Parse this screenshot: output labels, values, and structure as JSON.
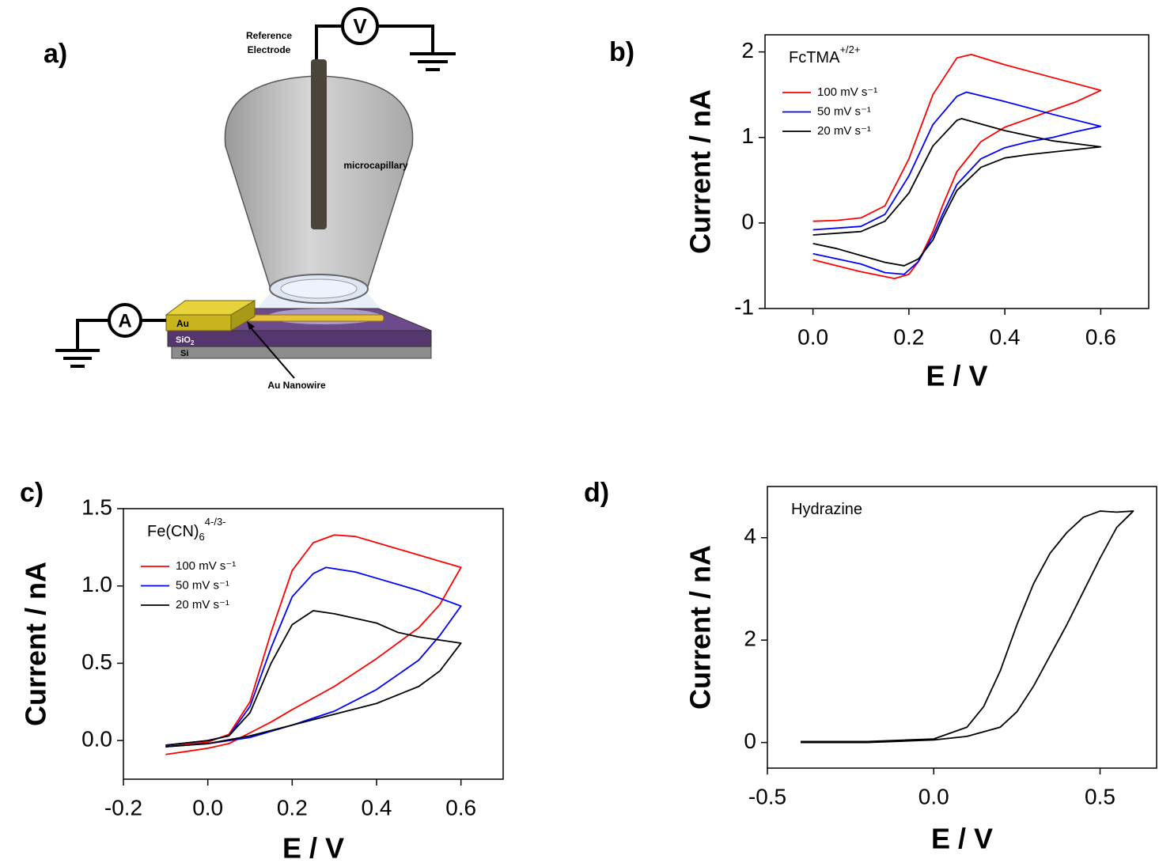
{
  "diagram": {
    "panel_label": "a)",
    "reference_electrode": [
      "Reference",
      "Electrode"
    ],
    "microcapillary": "microcapillary",
    "gold": "Au",
    "oxide": {
      "text": "SiO",
      "sub": "2"
    },
    "silicon": "Si",
    "nanowire": "Au Nanowire",
    "voltmeter": "V",
    "ammeter": "A"
  },
  "chart_data": [
    {
      "type": "line",
      "panel_label": "b)",
      "annotation": {
        "text": "FcTMA",
        "sup": "+/2+"
      },
      "xlabel": "E / V",
      "ylabel": "Current / nA",
      "xlim": [
        -0.1,
        0.7
      ],
      "xticks": [
        {
          "value": 0,
          "label": "0.0"
        },
        0.2,
        0.4,
        0.6
      ],
      "ylim": [
        -1,
        2.2
      ],
      "yticks": [
        -1,
        0,
        1,
        2
      ],
      "legend": "upper left",
      "series": [
        {
          "name": "100 mV s⁻¹",
          "color": "#ff0000",
          "x": [
            0,
            0.05,
            0.1,
            0.15,
            0.2,
            0.25,
            0.3,
            0.33,
            0.4,
            0.5,
            0.6,
            0.55,
            0.5,
            0.45,
            0.4,
            0.35,
            0.3,
            0.27,
            0.25,
            0.22,
            0.2,
            0.17,
            0.1,
            0.05,
            0
          ],
          "values": [
            0.02,
            0.03,
            0.06,
            0.2,
            0.75,
            1.5,
            1.93,
            1.97,
            1.85,
            1.7,
            1.55,
            1.42,
            1.32,
            1.22,
            1.12,
            0.95,
            0.6,
            0.2,
            -0.1,
            -0.45,
            -0.6,
            -0.65,
            -0.57,
            -0.5,
            -0.43
          ]
        },
        {
          "name": "50 mV s⁻¹",
          "color": "#0000ff",
          "x": [
            0,
            0.1,
            0.15,
            0.2,
            0.25,
            0.3,
            0.32,
            0.4,
            0.5,
            0.6,
            0.55,
            0.5,
            0.45,
            0.4,
            0.35,
            0.3,
            0.27,
            0.25,
            0.22,
            0.19,
            0.15,
            0.1,
            0.05,
            0
          ],
          "values": [
            -0.08,
            -0.04,
            0.1,
            0.55,
            1.15,
            1.48,
            1.53,
            1.42,
            1.27,
            1.13,
            1.07,
            1.0,
            0.95,
            0.88,
            0.75,
            0.45,
            0.1,
            -0.15,
            -0.45,
            -0.6,
            -0.58,
            -0.48,
            -0.42,
            -0.36
          ]
        },
        {
          "name": "20 mV s⁻¹",
          "color": "#000000",
          "x": [
            0,
            0.1,
            0.15,
            0.2,
            0.25,
            0.3,
            0.31,
            0.4,
            0.5,
            0.6,
            0.55,
            0.5,
            0.45,
            0.4,
            0.35,
            0.3,
            0.27,
            0.25,
            0.22,
            0.19,
            0.15,
            0.1,
            0.05,
            0
          ],
          "values": [
            -0.14,
            -0.1,
            0.02,
            0.35,
            0.9,
            1.2,
            1.22,
            1.08,
            0.96,
            0.89,
            0.86,
            0.83,
            0.8,
            0.76,
            0.65,
            0.38,
            0.05,
            -0.2,
            -0.42,
            -0.5,
            -0.46,
            -0.38,
            -0.3,
            -0.24
          ]
        }
      ]
    },
    {
      "type": "line",
      "panel_label": "c)",
      "annotation": {
        "text": "Fe(CN)",
        "sub": "6",
        "sup": "4-/3-"
      },
      "xlabel": "E / V",
      "ylabel": "Current / nA",
      "xlim": [
        -0.2,
        0.7
      ],
      "xticks": [
        -0.2,
        {
          "value": 0,
          "label": "0.0"
        },
        0.2,
        0.4,
        0.6
      ],
      "ylim": [
        -0.25,
        1.5
      ],
      "yticks": [
        {
          "value": 0,
          "label": "0.0"
        },
        0.5,
        {
          "value": 1,
          "label": "1.0"
        },
        1.5
      ],
      "legend": "upper left",
      "series": [
        {
          "name": "100 mV s⁻¹",
          "color": "#ff0000",
          "x": [
            -0.1,
            0,
            0.05,
            0.1,
            0.15,
            0.2,
            0.25,
            0.3,
            0.35,
            0.4,
            0.5,
            0.55,
            0.6,
            0.55,
            0.5,
            0.4,
            0.3,
            0.2,
            0.15,
            0.1,
            0.05,
            0,
            -0.1
          ],
          "values": [
            -0.04,
            -0.01,
            0.04,
            0.25,
            0.7,
            1.1,
            1.28,
            1.33,
            1.32,
            1.28,
            1.2,
            1.16,
            1.12,
            0.88,
            0.73,
            0.53,
            0.35,
            0.2,
            0.12,
            0.05,
            -0.02,
            -0.05,
            -0.09
          ]
        },
        {
          "name": "50 mV s⁻¹",
          "color": "#0000ff",
          "x": [
            -0.1,
            0,
            0.05,
            0.1,
            0.15,
            0.2,
            0.25,
            0.28,
            0.35,
            0.4,
            0.5,
            0.6,
            0.55,
            0.5,
            0.4,
            0.3,
            0.2,
            0.1,
            0,
            -0.1
          ],
          "values": [
            -0.03,
            0,
            0.03,
            0.22,
            0.6,
            0.93,
            1.08,
            1.12,
            1.09,
            1.05,
            0.97,
            0.87,
            0.68,
            0.52,
            0.33,
            0.19,
            0.1,
            0.02,
            -0.02,
            -0.04
          ]
        },
        {
          "name": "20 mV s⁻¹",
          "color": "#000000",
          "x": [
            -0.1,
            0,
            0.05,
            0.1,
            0.15,
            0.2,
            0.25,
            0.3,
            0.35,
            0.4,
            0.45,
            0.5,
            0.6,
            0.55,
            0.5,
            0.4,
            0.3,
            0.2,
            0.1,
            0,
            -0.1
          ],
          "values": [
            -0.03,
            0,
            0.03,
            0.18,
            0.5,
            0.75,
            0.84,
            0.82,
            0.79,
            0.76,
            0.7,
            0.67,
            0.63,
            0.45,
            0.35,
            0.24,
            0.17,
            0.1,
            0.03,
            -0.02,
            -0.04
          ]
        }
      ]
    },
    {
      "type": "line",
      "panel_label": "d)",
      "annotation": {
        "text": "Hydrazine"
      },
      "xlabel": "E / V",
      "ylabel": "Current / nA",
      "xlim": [
        -0.5,
        0.67
      ],
      "xticks": [
        -0.5,
        {
          "value": 0,
          "label": "0.0"
        },
        0.5
      ],
      "ylim": [
        -0.5,
        5
      ],
      "yticks": [
        0,
        2,
        4
      ],
      "series": [
        {
          "color": "#000000",
          "x": [
            -0.4,
            -0.2,
            0,
            0.1,
            0.15,
            0.2,
            0.25,
            0.3,
            0.35,
            0.4,
            0.45,
            0.5,
            0.55,
            0.6,
            0.55,
            0.5,
            0.45,
            0.4,
            0.35,
            0.3,
            0.25,
            0.2,
            0.1,
            0,
            -0.2,
            -0.4
          ],
          "values": [
            0.02,
            0.02,
            0.07,
            0.3,
            0.7,
            1.4,
            2.3,
            3.1,
            3.7,
            4.1,
            4.4,
            4.52,
            4.5,
            4.52,
            4.2,
            3.6,
            2.95,
            2.3,
            1.7,
            1.1,
            0.6,
            0.3,
            0.12,
            0.05,
            0,
            0
          ]
        }
      ]
    }
  ]
}
